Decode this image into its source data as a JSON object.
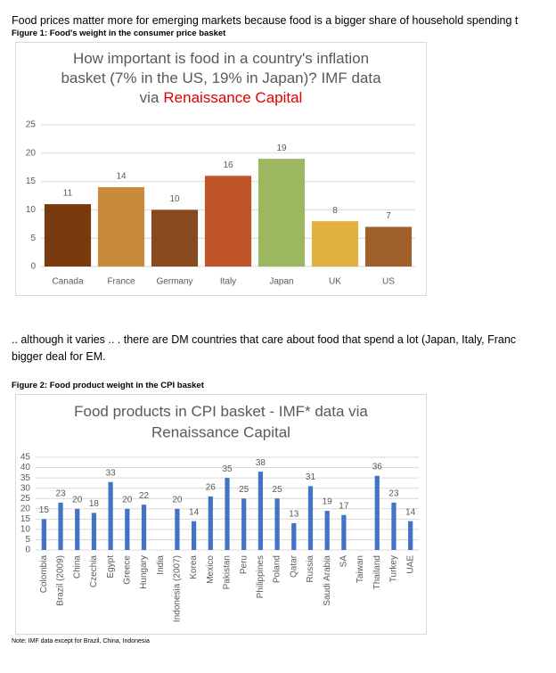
{
  "intro": "Food prices matter more for emerging markets because food is a bigger share of household spending t",
  "figure1_caption": "Figure 1: Food's weight in the consumer price basket",
  "paragraph": [
    ".. although it varies .. . there are DM countries that care about food that spend a lot (Japan, Italy, Franc",
    "bigger deal for EM."
  ],
  "figure2_caption": "Figure 2: Food product weight in the CPI basket",
  "note": "Note: IMF data except for Brazil, China, Indonesia",
  "chart_data": [
    {
      "type": "bar",
      "title": [
        "How important is food in a country's inflation",
        "basket (7% in the US, 19% in Japan)? IMF data",
        "via"
      ],
      "source": "Renaissance Capital",
      "source_inline": true,
      "source_color": "#e00000",
      "categories": [
        "Canada",
        "France",
        "Germany",
        "Italy",
        "Japan",
        "UK",
        "US"
      ],
      "values": [
        11,
        14,
        10,
        16,
        19,
        8,
        7
      ],
      "colors": [
        "#7a3a10",
        "#c98a3c",
        "#8a4a20",
        "#c0552a",
        "#9bb860",
        "#e0b040",
        "#a0602a"
      ],
      "ylim": [
        0,
        25
      ],
      "yticks": [
        0,
        5,
        10,
        15,
        20,
        25
      ],
      "grid": true,
      "rotate_labels": false
    },
    {
      "type": "bar",
      "title": [
        "Food products in CPI basket - IMF* data via"
      ],
      "source": "Renaissance Capital",
      "source_inline": false,
      "source_color": "#e00000",
      "categories": [
        "Colombia",
        "Brazil (2009)",
        "China",
        "Czechia",
        "Egypt",
        "Greece",
        "Hungary",
        "India",
        "Indonesia (2007)",
        "Korea",
        "Mexico",
        "Pakistan",
        "Peru",
        "Philippines",
        "Poland",
        "Qatar",
        "Russia",
        "Saudi Arabia",
        "SA",
        "Taiwan",
        "Thailand",
        "Turkey",
        "UAE"
      ],
      "values": [
        15,
        23,
        20,
        18,
        33,
        20,
        22,
        null,
        20,
        14,
        26,
        35,
        25,
        38,
        25,
        13,
        31,
        19,
        17,
        null,
        36,
        23,
        14
      ],
      "color": "#4472c4",
      "ylim": [
        0,
        45
      ],
      "yticks": [
        0,
        5,
        10,
        15,
        20,
        25,
        30,
        35,
        40,
        45
      ],
      "grid": true,
      "rotate_labels": true
    }
  ]
}
